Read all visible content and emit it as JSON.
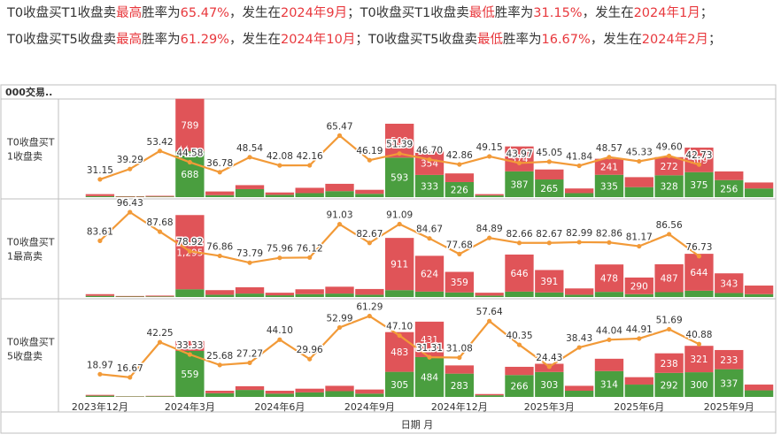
{
  "header": {
    "line1": [
      {
        "text": "T0收盘买T1收盘卖",
        "hl": false
      },
      {
        "text": "最高",
        "hl": true
      },
      {
        "text": "胜率为",
        "hl": false
      },
      {
        "text": "65.47%",
        "hl": true
      },
      {
        "text": "，发生在",
        "hl": false
      },
      {
        "text": "2024年9月",
        "hl": true
      },
      {
        "text": "；T0收盘买T1收盘卖",
        "hl": false
      },
      {
        "text": "最低",
        "hl": true
      },
      {
        "text": "胜率为",
        "hl": false
      },
      {
        "text": "31.15%",
        "hl": true
      },
      {
        "text": "，发生在",
        "hl": false
      },
      {
        "text": "2024年1月",
        "hl": true
      },
      {
        "text": "；",
        "hl": false
      }
    ],
    "line2": [
      {
        "text": "T0收盘买T5收盘卖",
        "hl": false
      },
      {
        "text": "最高",
        "hl": true
      },
      {
        "text": "胜率为",
        "hl": false
      },
      {
        "text": "61.29%",
        "hl": true
      },
      {
        "text": "，发生在",
        "hl": false
      },
      {
        "text": "2024年10月",
        "hl": true
      },
      {
        "text": "；T0收盘买T5收盘卖",
        "hl": false
      },
      {
        "text": "最低",
        "hl": true
      },
      {
        "text": "胜率为",
        "hl": false
      },
      {
        "text": "16.67%",
        "hl": true
      },
      {
        "text": "，发生在",
        "hl": false
      },
      {
        "text": "2024年2月",
        "hl": true
      },
      {
        "text": "；",
        "hl": false
      }
    ]
  },
  "colors": {
    "win": "#4a9e3f",
    "loss": "#e05458",
    "line": "#f29a38",
    "highlight": "#e8383d",
    "grid": "#d0d0d0"
  },
  "chart_data": {
    "type": "bar",
    "corner_label": "000交易..",
    "xlabel": "日期 月",
    "x_tick_labels": [
      {
        "index": 0,
        "label": "2023年12月"
      },
      {
        "index": 3,
        "label": "2024年3月"
      },
      {
        "index": 6,
        "label": "2024年6月"
      },
      {
        "index": 9,
        "label": "2024年9月"
      },
      {
        "index": 12,
        "label": "2024年12月"
      },
      {
        "index": 15,
        "label": "2025年3月"
      },
      {
        "index": 18,
        "label": "2025年6月"
      },
      {
        "index": 21,
        "label": "2025年9月"
      }
    ],
    "months": [
      "2023-12",
      "2024-01",
      "2024-02",
      "2024-03",
      "2024-04",
      "2024-05",
      "2024-06",
      "2024-07",
      "2024-08",
      "2024-09",
      "2024-10",
      "2024-11",
      "2024-12",
      "2025-01",
      "2025-02",
      "2025-03",
      "2025-04",
      "2025-05",
      "2025-06",
      "2025-07",
      "2025-08",
      "2025-09",
      "2025-10"
    ],
    "panels": [
      {
        "label": [
          "T0收盘买T",
          "1收盘卖"
        ],
        "bar_max": 1420,
        "line_range": [
          20,
          90
        ],
        "win": [
          15,
          6,
          8,
          688,
          30,
          120,
          35,
          60,
          90,
          50,
          593,
          333,
          226,
          25,
          387,
          265,
          60,
          335,
          150,
          328,
          375,
          256,
          130
        ],
        "loss": [
          30,
          8,
          12,
          789,
          55,
          60,
          35,
          80,
          110,
          60,
          509,
          354,
          130,
          20,
          374,
          150,
          70,
          241,
          150,
          272,
          369,
          130,
          90
        ],
        "win_labels": [
          null,
          null,
          null,
          "688",
          null,
          null,
          null,
          null,
          null,
          null,
          "593",
          "333",
          "226",
          null,
          "387",
          "265",
          null,
          "335",
          null,
          "328",
          "375",
          "256"
        ],
        "loss_labels": [
          null,
          null,
          null,
          "789",
          null,
          null,
          null,
          null,
          null,
          null,
          "509",
          "354",
          null,
          null,
          "374",
          null,
          null,
          "241",
          null,
          "272",
          "369",
          null
        ],
        "rates": [
          31.15,
          39.29,
          53.42,
          44.58,
          36.78,
          48.54,
          42.08,
          42.16,
          65.47,
          46.19,
          51.39,
          46.7,
          42.86,
          49.15,
          43.97,
          45.05,
          41.84,
          48.57,
          45.33,
          49.6,
          42.73
        ],
        "rate_labels": [
          "31.15",
          "39.29",
          "53.42",
          "44.58",
          "36.78",
          "48.54",
          "42.08",
          "42.16",
          "65.47",
          "46.19",
          "51.39",
          "46.70",
          "42.86",
          "49.15",
          "43.97",
          "45.05",
          "41.84",
          "48.57",
          "45.33",
          "49.60",
          "42.73"
        ]
      },
      {
        "label": [
          "T0收盘买T",
          "1最高卖"
        ],
        "bar_max": 1650,
        "line_range": [
          60,
          100
        ],
        "win": [
          20,
          8,
          10,
          135,
          40,
          60,
          30,
          50,
          60,
          40,
          120,
          95,
          80,
          25,
          95,
          80,
          40,
          90,
          50,
          85,
          110,
          70,
          50
        ],
        "loss": [
          30,
          10,
          15,
          1295,
          80,
          110,
          45,
          85,
          120,
          100,
          911,
          624,
          359,
          50,
          646,
          391,
          110,
          478,
          290,
          487,
          644,
          343,
          150
        ],
        "win_labels": [],
        "loss_labels": [
          null,
          null,
          null,
          "1,295",
          null,
          null,
          null,
          null,
          null,
          null,
          "911",
          "624",
          "359",
          null,
          "646",
          "391",
          null,
          "478",
          "290",
          "487",
          "644",
          "343"
        ],
        "rates": [
          83.61,
          96.43,
          87.68,
          78.92,
          76.86,
          73.79,
          75.96,
          76.12,
          91.03,
          82.67,
          91.09,
          84.67,
          77.68,
          84.89,
          82.66,
          82.67,
          82.99,
          82.86,
          81.17,
          86.56,
          76.73
        ],
        "rate_labels": [
          "83.61",
          "96.43",
          "87.68",
          "78.92",
          "76.86",
          "73.79",
          "75.96",
          "76.12",
          "91.03",
          "82.67",
          "91.09",
          "84.67",
          "77.68",
          "84.89",
          "82.66",
          "82.67",
          "82.99",
          "82.86",
          "81.17",
          "86.56",
          "76.73"
        ]
      },
      {
        "label": [
          "T0收盘买T",
          "5收盘卖"
        ],
        "bar_max": 1150,
        "line_range": [
          5,
          70
        ],
        "win": [
          15,
          5,
          8,
          559,
          45,
          85,
          40,
          55,
          70,
          40,
          305,
          484,
          283,
          20,
          266,
          303,
          75,
          314,
          150,
          292,
          300,
          337,
          80
        ],
        "loss": [
          10,
          3,
          5,
          120,
          30,
          45,
          35,
          45,
          65,
          50,
          483,
          431,
          100,
          15,
          100,
          100,
          60,
          150,
          90,
          238,
          321,
          233,
          70
        ],
        "win_labels": [
          null,
          null,
          null,
          "559",
          null,
          null,
          null,
          null,
          null,
          null,
          "305",
          "484",
          "283",
          null,
          "266",
          "303",
          null,
          "314",
          null,
          "292",
          "300",
          "337"
        ],
        "loss_labels": [
          null,
          null,
          null,
          null,
          null,
          null,
          null,
          null,
          null,
          null,
          "483",
          "431",
          null,
          null,
          null,
          null,
          null,
          null,
          null,
          "238",
          "321",
          "233"
        ],
        "rates": [
          18.97,
          16.67,
          42.25,
          33.33,
          25.68,
          27.27,
          44.1,
          29.96,
          52.99,
          61.29,
          47.1,
          31.31,
          31.08,
          57.64,
          40.35,
          24.43,
          38.43,
          44.04,
          44.91,
          51.69,
          40.88
        ],
        "rate_labels": [
          "18.97",
          "16.67",
          "42.25",
          "33.33",
          "25.68",
          "27.27",
          "44.10",
          "29.96",
          "52.99",
          "61.29",
          "47.10",
          "31.31",
          "31.08",
          "57.64",
          "40.35",
          "24.43",
          "38.43",
          "44.04",
          "44.91",
          "51.69",
          "40.88"
        ]
      }
    ]
  }
}
